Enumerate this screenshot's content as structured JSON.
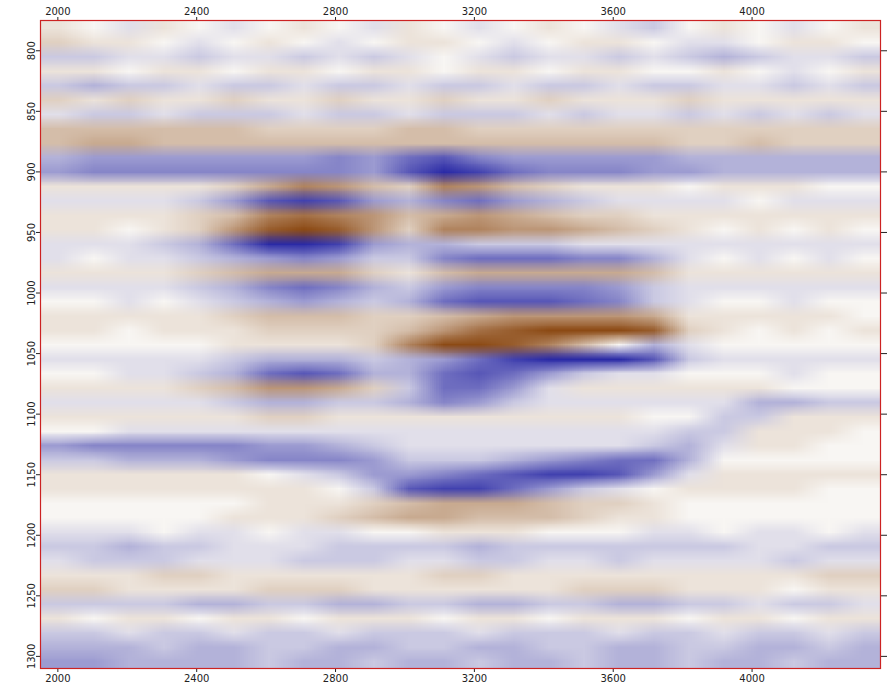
{
  "chart_data": {
    "type": "heatmap",
    "xlim": [
      1950,
      4370
    ],
    "ylim": [
      1310,
      775
    ],
    "xticks": [
      2000,
      2400,
      2800,
      3200,
      3600,
      4000
    ],
    "yticks": [
      800,
      850,
      900,
      950,
      1000,
      1050,
      1100,
      1150,
      1200,
      1250,
      1300
    ],
    "zlim": [
      -9,
      9
    ],
    "cells": [
      [
        1,
        0,
        -1,
        1,
        0,
        -1,
        0,
        1,
        0,
        -1,
        1,
        0,
        -1,
        0,
        1,
        0,
        -1,
        -2,
        0,
        1,
        0,
        -1,
        0,
        1
      ],
      [
        2,
        1,
        1,
        0,
        -1,
        0,
        1,
        0,
        -1,
        0,
        1,
        1,
        0,
        -1,
        0,
        1,
        1,
        0,
        -1,
        -1,
        0,
        1,
        1,
        0
      ],
      [
        -2,
        -2,
        -1,
        -1,
        -2,
        -1,
        -1,
        -2,
        -1,
        -2,
        -1,
        0,
        -1,
        -2,
        -1,
        -1,
        -2,
        -1,
        -2,
        -3,
        -2,
        -1,
        -1,
        -2
      ],
      [
        1,
        1,
        0,
        1,
        1,
        0,
        1,
        1,
        0,
        1,
        1,
        0,
        1,
        1,
        0,
        1,
        1,
        0,
        0,
        1,
        0,
        -1,
        0,
        1
      ],
      [
        -2,
        -3,
        -2,
        -2,
        -1,
        -2,
        -2,
        -1,
        -2,
        -2,
        -1,
        -2,
        -2,
        -1,
        -2,
        -2,
        -1,
        -2,
        -2,
        -1,
        -1,
        -2,
        -1,
        -2
      ],
      [
        2,
        1,
        2,
        1,
        1,
        2,
        1,
        1,
        2,
        1,
        1,
        2,
        1,
        1,
        2,
        1,
        1,
        1,
        2,
        1,
        1,
        1,
        1,
        1
      ],
      [
        -1,
        -2,
        -2,
        -1,
        -2,
        -2,
        -2,
        -1,
        -2,
        -2,
        -1,
        -2,
        -2,
        -2,
        -1,
        -2,
        -1,
        -1,
        -2,
        -1,
        -2,
        -1,
        -2,
        -1
      ],
      [
        3,
        3,
        3,
        3,
        3,
        3,
        2,
        2,
        2,
        2,
        3,
        3,
        2,
        2,
        2,
        2,
        2,
        2,
        2,
        2,
        2,
        2,
        2,
        2
      ],
      [
        3,
        4,
        4,
        3,
        3,
        3,
        3,
        3,
        3,
        3,
        3,
        3,
        3,
        3,
        3,
        3,
        3,
        3,
        2,
        2,
        3,
        2,
        2,
        2
      ],
      [
        -3,
        -4,
        -4,
        -4,
        -4,
        -4,
        -4,
        -4,
        -5,
        -4,
        -6,
        -7,
        -5,
        -4,
        -4,
        -4,
        -4,
        -4,
        -3,
        -3,
        -3,
        -3,
        -3,
        -3
      ],
      [
        -4,
        -5,
        -5,
        -5,
        -5,
        -5,
        -5,
        -5,
        -5,
        -4,
        -7,
        -9,
        -8,
        -6,
        -5,
        -5,
        -5,
        -4,
        -4,
        -3,
        -3,
        -3,
        -3,
        -3
      ],
      [
        1,
        1,
        1,
        1,
        1,
        2,
        4,
        6,
        5,
        3,
        2,
        6,
        5,
        3,
        2,
        1,
        1,
        1,
        0,
        1,
        1,
        1,
        0,
        0
      ],
      [
        -1,
        -1,
        -1,
        -1,
        -2,
        -4,
        -7,
        -8,
        -7,
        -4,
        -3,
        -5,
        -6,
        -4,
        -3,
        -2,
        -1,
        -1,
        -1,
        -1,
        0,
        -1,
        -1,
        -1
      ],
      [
        1,
        1,
        1,
        1,
        2,
        3,
        6,
        7,
        6,
        5,
        3,
        4,
        5,
        4,
        3,
        2,
        2,
        1,
        1,
        1,
        1,
        1,
        1,
        1
      ],
      [
        1,
        1,
        0,
        1,
        2,
        5,
        8,
        9,
        8,
        5,
        2,
        6,
        6,
        5,
        5,
        4,
        3,
        2,
        1,
        0,
        1,
        0,
        1,
        0
      ],
      [
        -1,
        -1,
        -1,
        -2,
        -3,
        -6,
        -9,
        -9,
        -8,
        -4,
        -3,
        -3,
        -2,
        -2,
        -2,
        -1,
        -1,
        -1,
        -1,
        -1,
        -1,
        -1,
        -1,
        -1
      ],
      [
        -1,
        0,
        -1,
        -1,
        -2,
        -3,
        -4,
        -5,
        -4,
        -2,
        -2,
        -5,
        -6,
        -6,
        -6,
        -5,
        -5,
        -3,
        -1,
        0,
        -1,
        0,
        -1,
        0
      ],
      [
        1,
        1,
        1,
        1,
        2,
        3,
        4,
        4,
        4,
        2,
        1,
        3,
        4,
        4,
        4,
        4,
        4,
        3,
        1,
        1,
        1,
        1,
        1,
        1
      ],
      [
        -1,
        -1,
        -1,
        -1,
        -2,
        -3,
        -5,
        -6,
        -5,
        -3,
        -2,
        -4,
        -5,
        -5,
        -5,
        -5,
        -4,
        -2,
        -1,
        -1,
        -1,
        -1,
        -1,
        -1
      ],
      [
        0,
        0,
        -1,
        0,
        -1,
        -2,
        -3,
        -4,
        -3,
        -2,
        -3,
        -6,
        -7,
        -7,
        -7,
        -6,
        -5,
        -2,
        -1,
        0,
        0,
        -1,
        0,
        0
      ],
      [
        1,
        1,
        1,
        1,
        1,
        2,
        3,
        3,
        3,
        2,
        2,
        3,
        4,
        5,
        5,
        5,
        5,
        4,
        1,
        1,
        1,
        1,
        1,
        0
      ],
      [
        1,
        1,
        0,
        1,
        1,
        1,
        2,
        2,
        2,
        2,
        3,
        5,
        7,
        8,
        9,
        9,
        9,
        8,
        2,
        1,
        0,
        1,
        0,
        1
      ],
      [
        0,
        0,
        0,
        0,
        0,
        1,
        1,
        1,
        1,
        2,
        6,
        9,
        9,
        8,
        6,
        3,
        0,
        -3,
        -1,
        0,
        0,
        0,
        0,
        0
      ],
      [
        -1,
        -1,
        -1,
        -1,
        -1,
        -2,
        -3,
        -3,
        -3,
        -2,
        -3,
        -4,
        -6,
        -8,
        -9,
        -9,
        -9,
        -7,
        -2,
        -1,
        -1,
        -1,
        -1,
        -1
      ],
      [
        0,
        0,
        -1,
        -1,
        -2,
        -3,
        -6,
        -7,
        -6,
        -3,
        -3,
        -6,
        -7,
        -6,
        -4,
        -2,
        -1,
        -1,
        0,
        0,
        0,
        -1,
        0,
        0
      ],
      [
        1,
        1,
        1,
        1,
        2,
        3,
        5,
        5,
        4,
        2,
        -2,
        -6,
        -6,
        -4,
        -1,
        1,
        1,
        1,
        1,
        1,
        1,
        0,
        0,
        0
      ],
      [
        -1,
        -1,
        -1,
        -1,
        -1,
        -2,
        -3,
        -3,
        -2,
        -2,
        -3,
        -5,
        -4,
        -2,
        -1,
        -1,
        -1,
        -1,
        -1,
        -1,
        -3,
        -3,
        -2,
        -2
      ],
      [
        1,
        1,
        1,
        1,
        1,
        1,
        2,
        2,
        1,
        1,
        1,
        1,
        1,
        1,
        1,
        1,
        1,
        0,
        0,
        -2,
        -2,
        1,
        1,
        1
      ],
      [
        0,
        0,
        -1,
        -1,
        -1,
        -1,
        -1,
        -1,
        -1,
        -1,
        -1,
        -1,
        -1,
        -1,
        -1,
        -1,
        -1,
        -1,
        -2,
        -2,
        1,
        1,
        1,
        0
      ],
      [
        -4,
        -5,
        -5,
        -5,
        -5,
        -5,
        -4,
        -4,
        -3,
        -2,
        -1,
        -1,
        -1,
        -1,
        -1,
        -1,
        -1,
        -2,
        -3,
        -1,
        1,
        1,
        0,
        0
      ],
      [
        -2,
        -2,
        -3,
        -3,
        -3,
        -4,
        -5,
        -5,
        -5,
        -4,
        -2,
        -2,
        -2,
        -3,
        -4,
        -5,
        -6,
        -6,
        -3,
        0,
        0,
        0,
        0,
        0
      ],
      [
        1,
        1,
        1,
        1,
        1,
        1,
        0,
        -1,
        -2,
        -4,
        -4,
        -5,
        -6,
        -7,
        -8,
        -8,
        -7,
        -4,
        -1,
        1,
        1,
        1,
        1,
        1
      ],
      [
        1,
        1,
        1,
        1,
        1,
        1,
        1,
        1,
        0,
        -2,
        -7,
        -8,
        -8,
        -6,
        -4,
        -2,
        -1,
        0,
        1,
        1,
        1,
        1,
        0,
        0
      ],
      [
        0,
        0,
        0,
        0,
        0,
        0,
        1,
        1,
        1,
        2,
        3,
        4,
        4,
        4,
        3,
        2,
        2,
        1,
        0,
        0,
        0,
        0,
        0,
        0
      ],
      [
        0,
        0,
        0,
        0,
        0,
        1,
        1,
        1,
        2,
        3,
        4,
        4,
        3,
        3,
        3,
        2,
        1,
        1,
        0,
        0,
        0,
        0,
        0,
        0
      ],
      [
        -1,
        -1,
        -1,
        0,
        -1,
        -1,
        0,
        -1,
        -1,
        0,
        0,
        1,
        1,
        1,
        0,
        0,
        0,
        -1,
        -1,
        0,
        -1,
        -1,
        0,
        -1
      ],
      [
        -2,
        -2,
        -3,
        -2,
        -2,
        -1,
        -1,
        -1,
        -2,
        -2,
        -2,
        -2,
        -3,
        -2,
        -2,
        -2,
        -2,
        -2,
        -2,
        -2,
        -1,
        -1,
        -2,
        -2
      ],
      [
        -1,
        -2,
        -2,
        -2,
        -1,
        -1,
        -1,
        -2,
        -2,
        -2,
        -1,
        -1,
        -2,
        -2,
        -1,
        -1,
        -2,
        -1,
        -1,
        -1,
        -1,
        -2,
        -1,
        -1
      ],
      [
        1,
        1,
        1,
        2,
        2,
        1,
        1,
        1,
        1,
        1,
        1,
        2,
        2,
        1,
        1,
        1,
        1,
        1,
        1,
        1,
        1,
        1,
        2,
        2
      ],
      [
        2,
        2,
        1,
        1,
        1,
        1,
        2,
        2,
        2,
        1,
        1,
        1,
        1,
        1,
        1,
        2,
        2,
        2,
        1,
        1,
        1,
        0,
        1,
        1
      ],
      [
        -2,
        -2,
        -2,
        -2,
        -3,
        -3,
        -2,
        -2,
        -3,
        -3,
        -2,
        -2,
        -3,
        -3,
        -2,
        -2,
        -3,
        -3,
        -2,
        -2,
        -1,
        -2,
        -2,
        -1
      ],
      [
        1,
        0,
        1,
        1,
        0,
        1,
        1,
        0,
        1,
        1,
        1,
        0,
        1,
        1,
        0,
        1,
        1,
        1,
        0,
        1,
        1,
        0,
        1,
        1
      ],
      [
        -2,
        -2,
        -1,
        -2,
        -2,
        -1,
        -2,
        -2,
        -1,
        -2,
        -2,
        -2,
        -1,
        -2,
        -2,
        -2,
        -1,
        -2,
        -2,
        -1,
        -2,
        -2,
        -1,
        -2
      ],
      [
        -3,
        -3,
        -3,
        -2,
        -3,
        -3,
        -2,
        -2,
        -3,
        -3,
        -2,
        -2,
        -3,
        -3,
        -2,
        -2,
        -3,
        -3,
        -2,
        -2,
        -3,
        -3,
        -2,
        -3
      ],
      [
        -4,
        -4,
        -3,
        -3,
        -3,
        -3,
        -2,
        -3,
        -3,
        -2,
        -3,
        -3,
        -2,
        -3,
        -3,
        -2,
        -3,
        -3,
        -2,
        -3,
        -3,
        -2,
        -3,
        -3
      ]
    ]
  }
}
